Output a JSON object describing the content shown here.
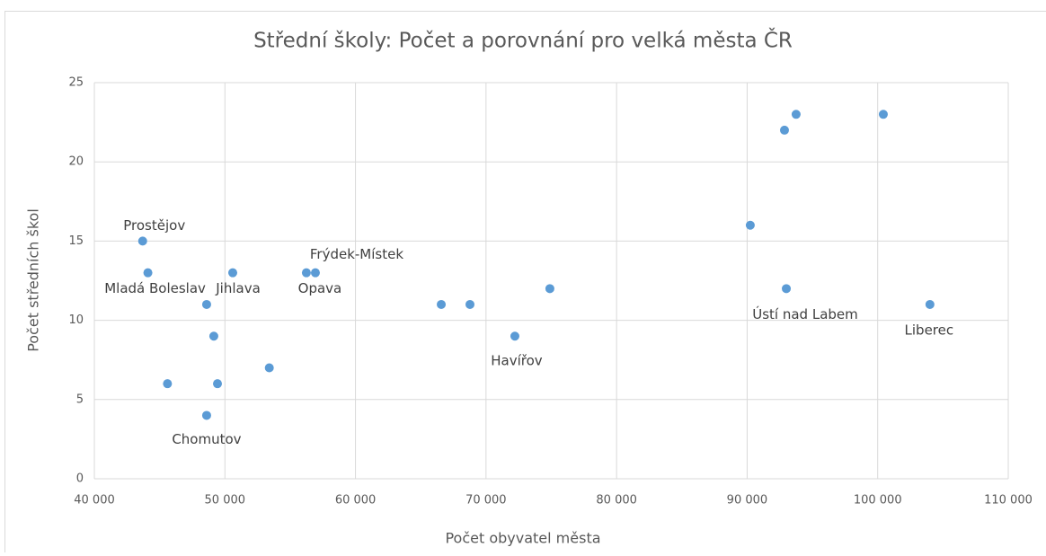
{
  "chart_data": {
    "type": "scatter",
    "title": "Střední školy: Počet a porovnání pro velká města ČR",
    "x_label": "Počet obyvatel města",
    "y_label": "Počet středních škol",
    "x": [
      43700,
      44100,
      45600,
      48600,
      48600,
      49150,
      49430,
      50600,
      53400,
      56240,
      56930,
      66570,
      68770,
      72210,
      74890,
      90240,
      92860,
      93000,
      93750,
      100430,
      104000
    ],
    "values": [
      15,
      13,
      6,
      4,
      11,
      9,
      6,
      13,
      7,
      13,
      13,
      11,
      11,
      9,
      12,
      16,
      22,
      12,
      23,
      23,
      11
    ],
    "labels": [
      "Prostějov",
      "Mladá Boleslav",
      null,
      "Chomutov",
      null,
      null,
      null,
      "Jihlava",
      null,
      "Opava",
      "Frýdek-Místek",
      null,
      null,
      "Havířov",
      null,
      null,
      null,
      "Ústí nad Labem",
      null,
      null,
      "Liberec"
    ],
    "color": "#5b9bd5",
    "xlim": [
      40000,
      110000
    ],
    "xticks": [
      {
        "value": 40000,
        "label": "40 000"
      },
      {
        "value": 50000,
        "label": "50 000"
      },
      {
        "value": 60000,
        "label": "60 000"
      },
      {
        "value": 70000,
        "label": "70 000"
      },
      {
        "value": 80000,
        "label": "80 000"
      },
      {
        "value": 90000,
        "label": "90 000"
      },
      {
        "value": 100000,
        "label": "100 000"
      },
      {
        "value": 110000,
        "label": "110 000"
      }
    ],
    "ylim": [
      0,
      25
    ],
    "yticks": [
      0,
      5,
      10,
      15,
      20,
      25
    ],
    "grid": true
  }
}
